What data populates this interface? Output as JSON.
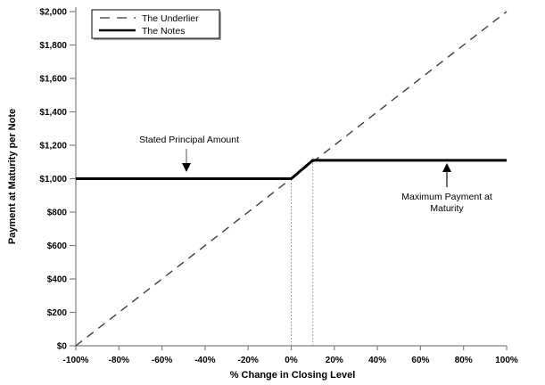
{
  "figure": {
    "type_note": "payoff-diagram",
    "colors": {
      "underlier_line": "#3d3d3d",
      "notes_line": "#000000",
      "axis": "#808080",
      "guide": "#8c8c8c",
      "legend_shadow": "#a6a6a6"
    }
  },
  "chart_data": {
    "type": "line",
    "title": "",
    "xlabel": "% Change in Closing Level",
    "ylabel": "Payment at Maturity per Note",
    "xlim": [
      -100,
      100
    ],
    "ylim": [
      0,
      2000
    ],
    "grid": false,
    "legend_position": "top-left",
    "x_tick_values": [
      -100,
      -80,
      -60,
      -40,
      -20,
      0,
      20,
      40,
      60,
      80,
      100
    ],
    "x_tick_labels": [
      "-100%",
      "-80%",
      "-60%",
      "-40%",
      "-20%",
      "0%",
      "20%",
      "40%",
      "60%",
      "80%",
      "100%"
    ],
    "y_tick_values": [
      0,
      200,
      400,
      600,
      800,
      1000,
      1200,
      1400,
      1600,
      1800,
      2000
    ],
    "y_tick_labels": [
      "$0",
      "$200",
      "$400",
      "$600",
      "$800",
      "$1,000",
      "$1,200",
      "$1,400",
      "$1,600",
      "$1,800",
      "$2,000"
    ],
    "series": [
      {
        "name": "The Underlier",
        "style": "dashed",
        "points": [
          [
            -100,
            0
          ],
          [
            100,
            2000
          ]
        ]
      },
      {
        "name": "The Notes",
        "style": "solid",
        "points": [
          [
            -100,
            1000
          ],
          [
            0,
            1000
          ],
          [
            10,
            1110
          ],
          [
            100,
            1110
          ]
        ]
      }
    ],
    "guides": [
      {
        "x": 0,
        "y_top": 1000
      },
      {
        "x": 10,
        "y_top": 1110
      }
    ],
    "annotations": [
      {
        "text": "Stated Principal Amount",
        "lines": [
          "Stated Principal Amount"
        ],
        "arrow": "down",
        "points_to": {
          "x": -49,
          "y": 1000
        }
      },
      {
        "text": "Maximum Payment at Maturity",
        "lines": [
          "Maximum Payment at",
          "Maturity"
        ],
        "arrow": "up",
        "points_to": {
          "x": 72,
          "y": 1110
        }
      }
    ]
  }
}
